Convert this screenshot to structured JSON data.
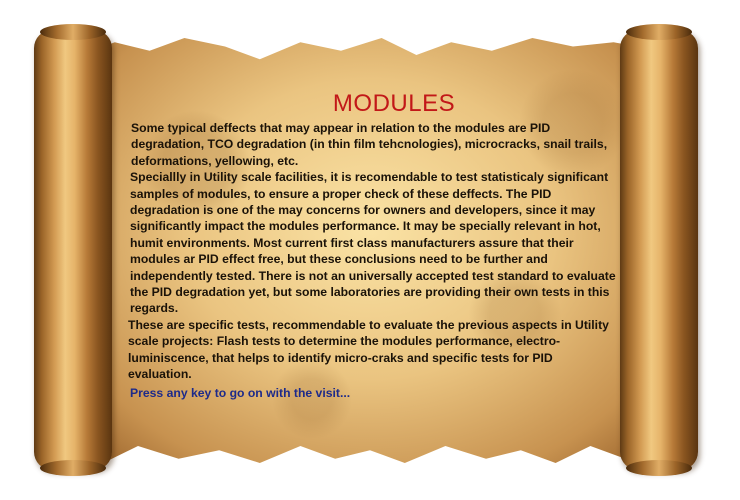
{
  "scroll": {
    "title": "MODULES",
    "paragraphs": [
      "Some typical deffects that may appear in relation to the modules are PID degradation, TCO degradation (in thin film tehcnologies), microcracks, snail trails, deformations, yellowing, etc.",
      "Speciallly in Utility scale facilities, it is recomendable to test statisticaly significant samples of modules, to ensure a proper check of these deffects. The PID degradation is one of the may concerns for owners and developers, since it may significantly impact the modules performance. It may be specially relevant in hot, humit environments. Most current first class manufacturers assure that their modules ar PID effect free, but these conclusions need to be further and independently tested. There is not an universally accepted test standard to evaluate the PID degradation yet, but some laboratories are providing their own tests in this regards.",
      "These are specific tests, recommendable to evaluate the previous aspects in Utility scale projects: Flash tests to determine the modules performance, electro-luminiscence, that helps to identify micro-craks and specific tests for PID evaluation."
    ],
    "prompt": "Press any key to go on with the visit..."
  },
  "colors": {
    "title": "#c21818",
    "body_text": "#1a1208",
    "prompt_text": "#1d2a8a",
    "parchment": "#e8be73"
  }
}
